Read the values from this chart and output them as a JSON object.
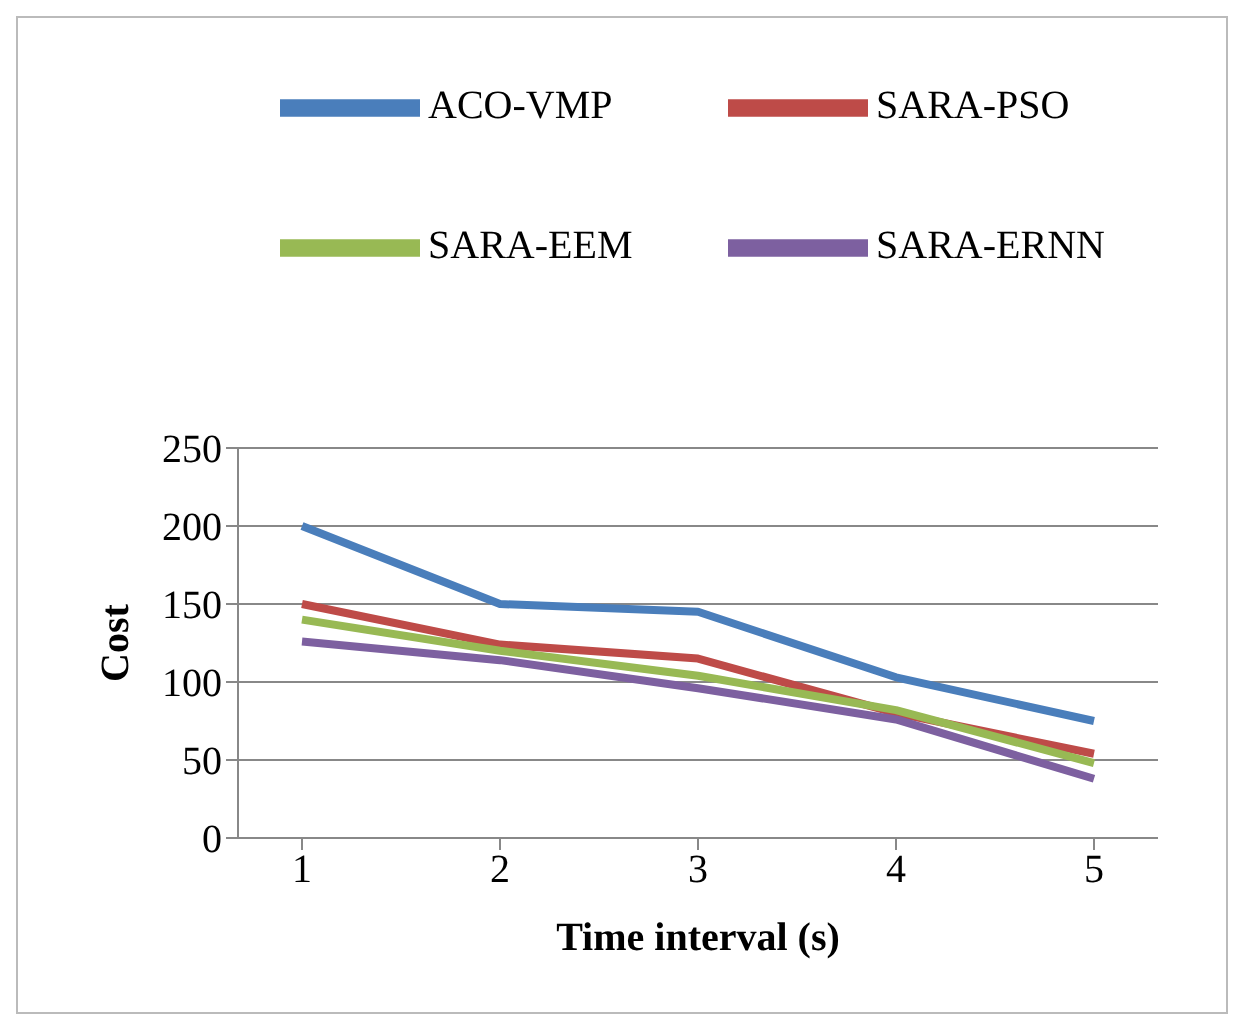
{
  "chart_data": {
    "type": "line",
    "xlabel": "Time interval (s)",
    "ylabel": "Cost",
    "categories": [
      "1",
      "2",
      "3",
      "4",
      "5"
    ],
    "series": [
      {
        "name": "ACO-VMP",
        "color": "#4a7ebb",
        "values": [
          200,
          150,
          145,
          103,
          75
        ]
      },
      {
        "name": "SARA-PSO",
        "color": "#be4b48",
        "values": [
          150,
          124,
          115,
          80,
          54
        ]
      },
      {
        "name": "SARA-EEM",
        "color": "#98b954",
        "values": [
          140,
          120,
          104,
          82,
          48
        ]
      },
      {
        "name": "SARA-ERNN",
        "color": "#7d60a0",
        "values": [
          126,
          114,
          96,
          76,
          38
        ]
      }
    ],
    "ylim": [
      0,
      250
    ],
    "yticks": [
      0,
      50,
      100,
      150,
      200,
      250
    ],
    "grid": "y",
    "legend": "top",
    "marker": "none",
    "line_style": "solid"
  }
}
